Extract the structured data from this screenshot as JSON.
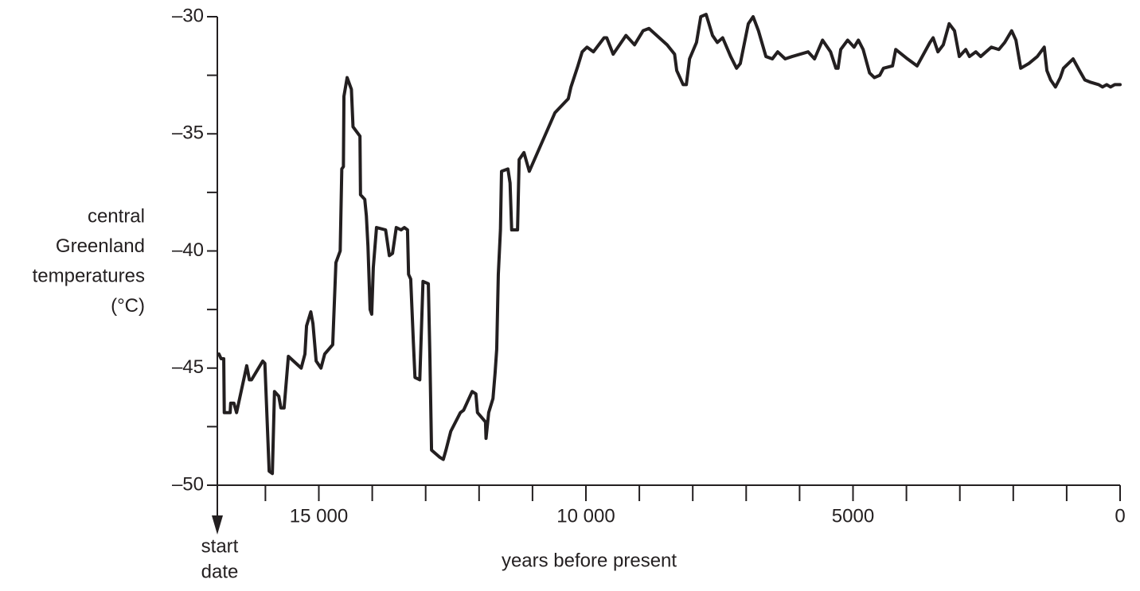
{
  "chart_data": {
    "type": "line",
    "ylabel_lines": [
      "central",
      "Greenland",
      "temperatures",
      "(°C)"
    ],
    "xlabel": "years before present",
    "annotation_lines": [
      "start",
      "date"
    ],
    "annotation_x": 16900,
    "color": "#231f20",
    "xlim": [
      16900,
      0
    ],
    "ylim": [
      -50,
      -30
    ],
    "xticks": [
      {
        "value": 15000,
        "label": "15 000"
      },
      {
        "value": 10000,
        "label": "10 000"
      },
      5000,
      0
    ],
    "xminor_ticks": [
      16000,
      14000,
      13000,
      12000,
      11000,
      9000,
      8000,
      7000,
      6000,
      4000,
      3000,
      2000,
      1000
    ],
    "yticks": [
      {
        "value": -30,
        "label": "–30"
      },
      {
        "value": -35,
        "label": "–35"
      },
      {
        "value": -40,
        "label": "–40"
      },
      {
        "value": -45,
        "label": "–45"
      },
      {
        "value": -50,
        "label": "–50"
      }
    ],
    "yminor_ticks": [
      -32.5,
      -37.5,
      -42.5,
      -47.5
    ],
    "x": [
      16870,
      16830,
      16780,
      16770,
      16660,
      16650,
      16590,
      16540,
      16350,
      16300,
      16260,
      16050,
      16010,
      15930,
      15870,
      15830,
      15750,
      15710,
      15650,
      15570,
      15330,
      15260,
      15230,
      15150,
      15110,
      15050,
      14960,
      14890,
      14740,
      14680,
      14600,
      14570,
      14540,
      14530,
      14470,
      14390,
      14360,
      14230,
      14220,
      14140,
      14110,
      14080,
      14040,
      14010,
      13980,
      13920,
      13750,
      13680,
      13620,
      13550,
      13460,
      13400,
      13340,
      13320,
      13280,
      13230,
      13200,
      13110,
      13050,
      12950,
      12920,
      12890,
      12740,
      12670,
      12620,
      12530,
      12350,
      12290,
      12130,
      12060,
      12030,
      11880,
      11870,
      11820,
      11740,
      11700,
      11670,
      11640,
      11600,
      11580,
      11460,
      11420,
      11390,
      11280,
      11250,
      11160,
      11060,
      10580,
      10330,
      10280,
      10150,
      10070,
      9980,
      9860,
      9660,
      9610,
      9490,
      9370,
      9250,
      9090,
      8930,
      8820,
      8480,
      8340,
      8300,
      8180,
      8120,
      8060,
      7930,
      7850,
      7750,
      7630,
      7540,
      7440,
      7290,
      7180,
      7110,
      6960,
      6870,
      6770,
      6630,
      6510,
      6410,
      6270,
      6140,
      5840,
      5720,
      5570,
      5420,
      5320,
      5280,
      5230,
      5100,
      4980,
      4900,
      4810,
      4690,
      4600,
      4500,
      4430,
      4260,
      4200,
      3980,
      3800,
      3680,
      3560,
      3500,
      3410,
      3310,
      3200,
      3100,
      3010,
      2890,
      2820,
      2700,
      2610,
      2410,
      2270,
      2160,
      2030,
      1950,
      1860,
      1710,
      1550,
      1420,
      1370,
      1300,
      1210,
      1120,
      1060,
      880,
      760,
      660,
      550,
      400,
      330,
      250,
      180,
      100,
      0
    ],
    "values": [
      -44.4,
      -44.6,
      -44.6,
      -46.9,
      -46.9,
      -46.5,
      -46.5,
      -46.9,
      -44.9,
      -45.5,
      -45.5,
      -44.7,
      -44.8,
      -49.4,
      -49.5,
      -46.0,
      -46.2,
      -46.7,
      -46.7,
      -44.5,
      -45.0,
      -44.4,
      -43.2,
      -42.6,
      -43.1,
      -44.7,
      -45.0,
      -44.4,
      -44.0,
      -40.5,
      -40.0,
      -36.5,
      -36.4,
      -33.4,
      -32.6,
      -33.1,
      -34.7,
      -35.1,
      -37.6,
      -37.8,
      -38.5,
      -39.8,
      -42.5,
      -42.7,
      -40.7,
      -39.0,
      -39.1,
      -40.2,
      -40.1,
      -39.0,
      -39.1,
      -39.0,
      -39.1,
      -41.0,
      -41.2,
      -43.9,
      -45.4,
      -45.5,
      -41.3,
      -41.4,
      -44.6,
      -48.5,
      -48.8,
      -48.9,
      -48.5,
      -47.7,
      -46.9,
      -46.8,
      -46.0,
      -46.1,
      -46.9,
      -47.3,
      -48.0,
      -46.9,
      -46.3,
      -45.2,
      -44.2,
      -41.0,
      -39.1,
      -36.6,
      -36.5,
      -37.1,
      -39.1,
      -39.1,
      -36.1,
      -35.8,
      -36.6,
      -34.1,
      -33.5,
      -33.0,
      -32.1,
      -31.5,
      -31.3,
      -31.5,
      -30.9,
      -30.9,
      -31.6,
      -31.2,
      -30.8,
      -31.2,
      -30.6,
      -30.5,
      -31.2,
      -31.6,
      -32.3,
      -32.9,
      -32.9,
      -31.8,
      -31.1,
      -30.0,
      -29.9,
      -30.8,
      -31.1,
      -30.9,
      -31.7,
      -32.2,
      -32.0,
      -30.3,
      -30.0,
      -30.6,
      -31.7,
      -31.8,
      -31.5,
      -31.8,
      -31.7,
      -31.5,
      -31.8,
      -31.0,
      -31.5,
      -32.2,
      -32.2,
      -31.4,
      -31.0,
      -31.3,
      -31.0,
      -31.4,
      -32.4,
      -32.6,
      -32.5,
      -32.2,
      -32.1,
      -31.4,
      -31.8,
      -32.1,
      -31.6,
      -31.1,
      -30.9,
      -31.5,
      -31.2,
      -30.3,
      -30.6,
      -31.7,
      -31.4,
      -31.7,
      -31.5,
      -31.7,
      -31.3,
      -31.4,
      -31.1,
      -30.6,
      -31.0,
      -32.2,
      -32.0,
      -31.7,
      -31.3,
      -32.3,
      -32.7,
      -33.0,
      -32.6,
      -32.2,
      -31.8,
      -32.3,
      -32.7,
      -32.8,
      -32.9,
      -33.0,
      -32.9,
      -33.0,
      -32.9,
      -32.9
    ]
  }
}
